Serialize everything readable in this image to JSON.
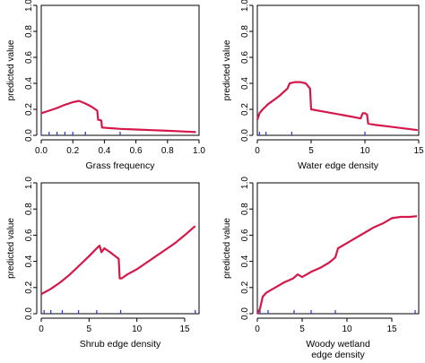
{
  "chart_data": [
    {
      "type": "line",
      "ylabel": "predicted value",
      "xlabel": [
        "Grass frequency"
      ],
      "xlim": [
        0,
        1
      ],
      "ylim": [
        0,
        1
      ],
      "xticks": [
        "0.0",
        "0.2",
        "0.4",
        "0.6",
        "0.8",
        "1.0"
      ],
      "yticks": [
        "0.0",
        "0.2",
        "0.4",
        "0.6",
        "0.8",
        "1.0"
      ],
      "series": [
        {
          "color": "#d4184a",
          "x": [
            0.0,
            0.05,
            0.1,
            0.15,
            0.2,
            0.24,
            0.28,
            0.32,
            0.355,
            0.36,
            0.38,
            0.385,
            0.5,
            0.6,
            0.7,
            0.8,
            0.9,
            0.98
          ],
          "y": [
            0.17,
            0.19,
            0.21,
            0.235,
            0.255,
            0.265,
            0.245,
            0.22,
            0.19,
            0.12,
            0.115,
            0.06,
            0.05,
            0.045,
            0.04,
            0.035,
            0.03,
            0.025
          ]
        }
      ],
      "rug": [
        0.0,
        0.05,
        0.1,
        0.15,
        0.2,
        0.28,
        0.5
      ]
    },
    {
      "type": "line",
      "ylabel": "predicted value",
      "xlabel": [
        "Water edge density"
      ],
      "xlim": [
        0,
        15
      ],
      "ylim": [
        0,
        1
      ],
      "xticks": [
        "0",
        "5",
        "10",
        "15"
      ],
      "yticks": [
        "0.0",
        "0.2",
        "0.4",
        "0.6",
        "0.8",
        "1.0"
      ],
      "series": [
        {
          "color": "#d4184a",
          "x": [
            0.0,
            0.2,
            0.5,
            1.0,
            2.0,
            2.8,
            3.0,
            3.5,
            4.0,
            4.5,
            4.9,
            5.0,
            6.0,
            7.0,
            8.0,
            9.0,
            9.6,
            9.8,
            10.0,
            10.2,
            10.3,
            11.0,
            12.0,
            13.0,
            14.0,
            14.9
          ],
          "y": [
            0.12,
            0.17,
            0.2,
            0.24,
            0.3,
            0.36,
            0.4,
            0.41,
            0.41,
            0.4,
            0.36,
            0.2,
            0.185,
            0.17,
            0.155,
            0.14,
            0.13,
            0.17,
            0.17,
            0.16,
            0.09,
            0.08,
            0.07,
            0.06,
            0.05,
            0.04
          ]
        }
      ],
      "rug": [
        0.2,
        0.8,
        3.2,
        10.0
      ]
    },
    {
      "type": "line",
      "ylabel": "predicted value",
      "xlabel": [
        "Shrub edge density"
      ],
      "xlim": [
        0,
        16.5
      ],
      "ylim": [
        0,
        1
      ],
      "xticks": [
        "0",
        "5",
        "10",
        "15"
      ],
      "yticks": [
        "0.0",
        "0.2",
        "0.4",
        "0.6",
        "0.8",
        "1.0"
      ],
      "series": [
        {
          "color": "#d4184a",
          "x": [
            0.0,
            1.0,
            2.0,
            3.0,
            4.0,
            5.0,
            5.8,
            6.1,
            6.3,
            6.6,
            7.2,
            8.1,
            8.2,
            8.4,
            9.0,
            10.0,
            11.0,
            12.0,
            13.0,
            14.0,
            15.0,
            16.1
          ],
          "y": [
            0.15,
            0.19,
            0.24,
            0.3,
            0.37,
            0.44,
            0.5,
            0.52,
            0.47,
            0.5,
            0.47,
            0.42,
            0.27,
            0.27,
            0.3,
            0.34,
            0.39,
            0.44,
            0.49,
            0.54,
            0.6,
            0.67
          ]
        }
      ],
      "rug": [
        0.3,
        1.0,
        2.2,
        3.9,
        5.8,
        8.3,
        16.1
      ]
    },
    {
      "type": "line",
      "ylabel": "predicted value",
      "xlabel": [
        "Woody wetland",
        "edge density"
      ],
      "xlim": [
        0,
        18
      ],
      "ylim": [
        0,
        1
      ],
      "xticks": [
        "0",
        "5",
        "10",
        "15"
      ],
      "yticks": [
        "0.0",
        "0.2",
        "0.4",
        "0.6",
        "0.8",
        "1.0"
      ],
      "series": [
        {
          "color": "#d4184a",
          "x": [
            0.0,
            0.3,
            0.6,
            1.0,
            2.0,
            3.0,
            4.0,
            4.5,
            5.0,
            6.0,
            7.0,
            8.0,
            8.7,
            9.0,
            10.0,
            11.0,
            12.0,
            13.0,
            14.0,
            15.0,
            16.0,
            17.0,
            17.8
          ],
          "y": [
            0.0,
            0.04,
            0.13,
            0.16,
            0.2,
            0.24,
            0.27,
            0.3,
            0.28,
            0.32,
            0.35,
            0.39,
            0.43,
            0.5,
            0.54,
            0.58,
            0.62,
            0.66,
            0.69,
            0.73,
            0.74,
            0.74,
            0.745
          ]
        }
      ],
      "rug": [
        0.3,
        1.2,
        4.1,
        6.0,
        8.7,
        17.6
      ]
    }
  ]
}
